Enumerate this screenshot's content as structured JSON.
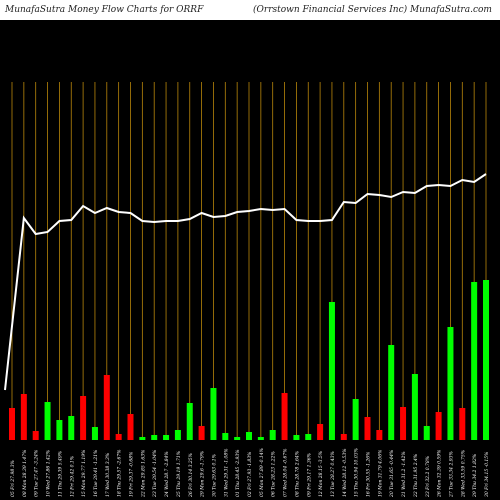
{
  "header": {
    "left_title": "MunafaSutra  Money Flow  Charts for ORRF",
    "right_title": "(Orrstown  Financial Services Inc) MunafaSutra.com"
  },
  "colors": {
    "background": "#000000",
    "gridline": "#b8860b",
    "line": "#ffffff",
    "up": "#00ff00",
    "down": "#ff0000"
  },
  "chart_data": {
    "type": "bar",
    "title": "",
    "categories": [
      "05 Fri Jul 2024",
      "08 Mon Jul 2024",
      "09 Tue Jul 2024",
      "10 Wed Jul 2024",
      "11 Thu Jul 2024",
      "12 Fri Jul 2024",
      "15 Mon Jul 2024",
      "16 Tue Jul 2024",
      "17 Wed Jul 2024",
      "18 Thu Jul 2024",
      "19 Fri Jul 2024",
      "22 Mon Jul 2024",
      "23 Tue Jul 2024",
      "24 Wed Jul 2024",
      "25 Thu Jul 2024",
      "26 Fri Jul 2024",
      "29 Mon Jul 2024",
      "30 Tue Jul 2024",
      "31 Wed Jul 2024",
      "01 Thu Aug 2024",
      "02 Fri Aug 2024",
      "05 Mon Aug 2024",
      "06 Tue Aug 2024",
      "07 Wed Aug 2024",
      "08 Thu Aug 2024",
      "09 Fri Aug 2024",
      "12 Mon Aug 2024",
      "13 Tue Aug 2024",
      "14 Wed Aug 2024",
      "15 Thu Aug 2024",
      "16 Fri Aug 2024",
      "19 Mon Aug 2024",
      "20 Tue Aug 2024",
      "21 Wed Aug 2024",
      "22 Thu Aug 2024",
      "23 Fri Aug 2024",
      "26 Mon Aug 2024",
      "27 Tue Aug 2024",
      "28 Wed Aug 2024",
      "29 Thu Aug 2024",
      "30 Fri Aug 2024"
    ],
    "xlabels": [
      "05 Fri 27.98 3%",
      "08 Mon 28.39 1.47%",
      "09 Tue 27.47 -3.24%",
      "10 Wed 27.86 1.42%",
      "11 Thu 29.39 5.49%",
      "12 Fri 29.42 0.1%",
      "15 Mon 29.77 1.19%",
      "16 Tue 29.41 -1.21%",
      "17 Wed 30.38 3.3%",
      "18 Thu 29.57 -2.67%",
      "19 Fri 29.37 -0.68%",
      "22 Mon 29.85 1.63%",
      "23 Tue 29.54 -1.04%",
      "24 Wed 28.7 -2.84%",
      "25 Thu 29.19 1.71%",
      "26 Fri 30.14 3.25%",
      "29 Mon 29.6 -1.79%",
      "30 Tue 29.63 0.1%",
      "31 Wed 29.31 -1.08%",
      "01 Thu 28.45 -2.93%",
      "02 Fri 27.93 -1.83%",
      "05 Mon 27.89 -0.14%",
      "06 Tue 28.23 1.22%",
      "07 Wed 28.04 -0.67%",
      "08 Thu 28.78 2.64%",
      "09 Fri 29.17 1.36%",
      "12 Mon 28.15 -3.5%",
      "13 Tue 28.27 0.43%",
      "14 Wed 28.12 -0.53%",
      "15 Thu 30.94 10.03%",
      "16 Fri 30.55 -1.26%",
      "19 Mon 31.79 4.06%",
      "20 Tue 31.65 -0.44%",
      "21 Wed 31.2 -1.42%",
      "22 Thu 31.95 2.4%",
      "23 Fri 32.2 0.78%",
      "26 Mon 32.39 0.59%",
      "27 Tue 33.34 2.93%",
      "28 Wed 33.59 0.75%",
      "29 Thu 34.2 1.82%",
      "30 Fri 34.15 -0.15%"
    ],
    "series": [
      {
        "type": "bar",
        "values": [
          32,
          46,
          9,
          38,
          20,
          24,
          44,
          13,
          65,
          6,
          26,
          3,
          5,
          5,
          10,
          37,
          14,
          52,
          7,
          3,
          8,
          3,
          10,
          47,
          5,
          6,
          16,
          138,
          6,
          41,
          23,
          10,
          95,
          33,
          66,
          14,
          28,
          113,
          32,
          158,
          160
        ],
        "direction": [
          "down",
          "down",
          "down",
          "up",
          "up",
          "up",
          "down",
          "up",
          "down",
          "down",
          "down",
          "up",
          "up",
          "up",
          "up",
          "up",
          "down",
          "up",
          "up",
          "up",
          "up",
          "up",
          "up",
          "down",
          "up",
          "up",
          "down",
          "up",
          "down",
          "up",
          "down",
          "down",
          "up",
          "down",
          "up",
          "up",
          "down",
          "up",
          "down",
          "up",
          "up"
        ]
      },
      {
        "type": "line",
        "values": [
          50,
          222,
          206,
          208,
          219,
          220,
          234,
          227,
          232,
          228,
          227,
          219,
          218,
          219,
          219,
          221,
          227,
          223,
          224,
          228,
          229,
          231,
          230,
          231,
          220,
          219,
          219,
          220,
          238,
          237,
          246,
          245,
          243,
          248,
          247,
          254,
          255,
          254,
          260,
          258,
          266
        ]
      }
    ]
  }
}
